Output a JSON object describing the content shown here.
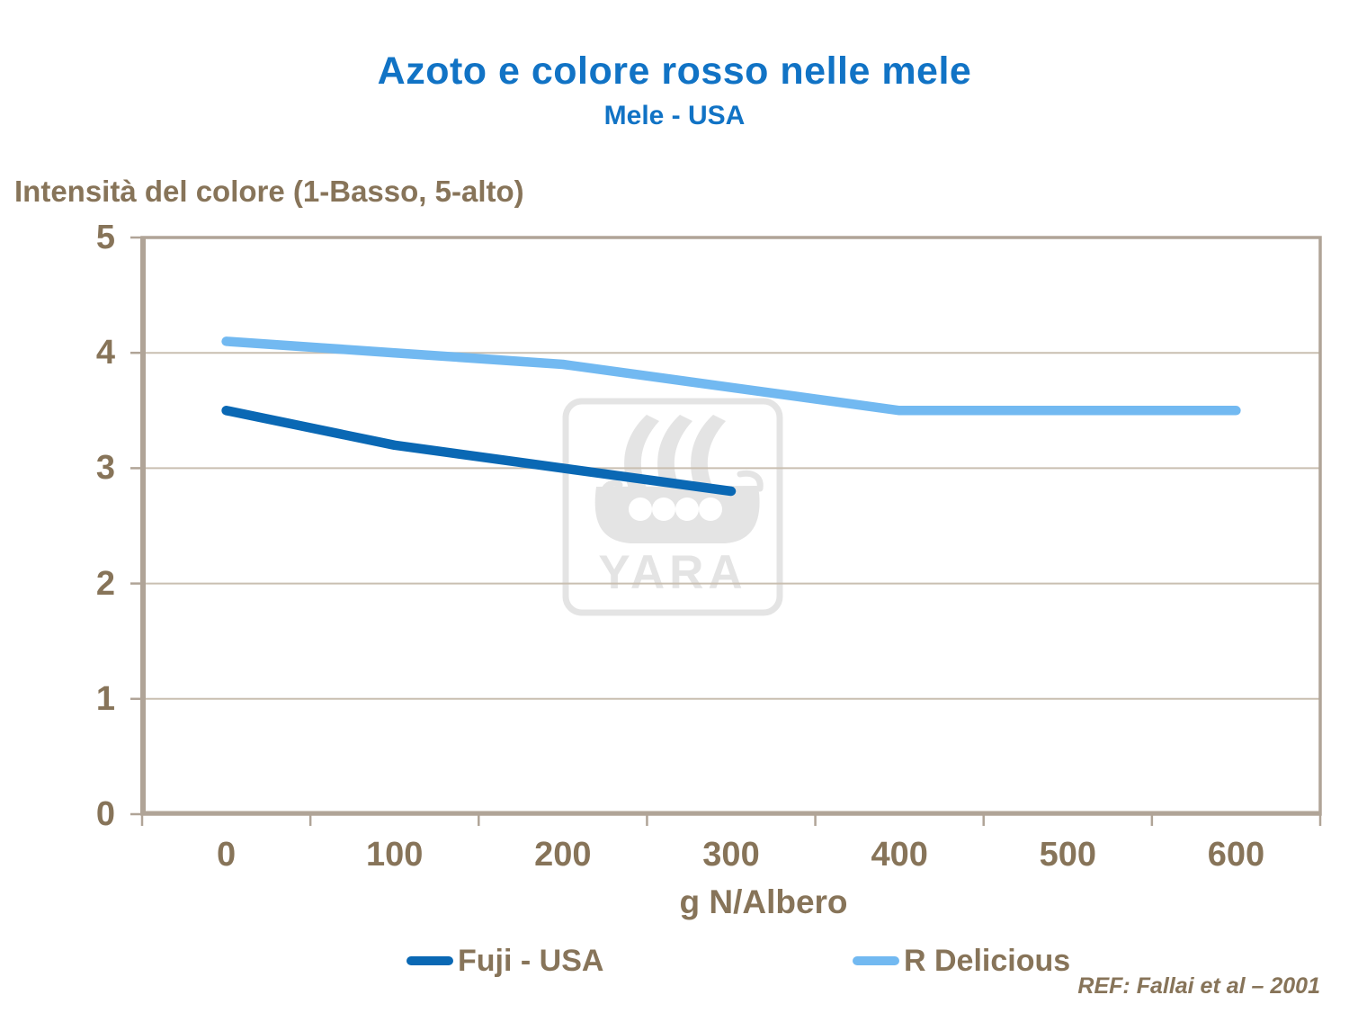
{
  "slide": {
    "title": "Azoto e colore rosso nelle mele",
    "subtitle": "Mele - USA",
    "reference": "REF: Fallai et al – 2001",
    "watermark_text": "YARA"
  },
  "chart_data": {
    "type": "line",
    "title": "Azoto e colore rosso nelle mele",
    "subtitle": "Mele - USA",
    "xlabel": "g N/Albero",
    "ylabel": "Intensità del colore (1-Basso, 5-alto)",
    "x_categories": [
      0,
      100,
      200,
      300,
      400,
      500,
      600
    ],
    "x_tick_labels": [
      "0",
      "100",
      "200",
      "300",
      "400",
      "500",
      "600"
    ],
    "y_tick_labels": [
      "0",
      "1",
      "2",
      "3",
      "4",
      "5"
    ],
    "ylim": [
      0,
      5
    ],
    "grid": "horizontal gridlines at 1,2,3,4",
    "legend_position": "bottom",
    "series": [
      {
        "name": "Fuji - USA",
        "color": "#0a68b4",
        "x": [
          0,
          100,
          200,
          300
        ],
        "values": [
          3.5,
          3.2,
          3.0,
          2.8
        ]
      },
      {
        "name": "R Delicious",
        "color": "#72b9f1",
        "x": [
          0,
          100,
          200,
          300,
          400,
          500,
          600
        ],
        "values": [
          4.1,
          4.0,
          3.9,
          3.7,
          3.5,
          3.5,
          3.5
        ]
      }
    ]
  },
  "colors": {
    "title_blue": "#1173c5",
    "text_brown": "#877459",
    "axis_tan": "#b0a497",
    "gridline_tan": "#c9bfb1",
    "watermark_gray": "#e4e4e4",
    "series_fuji": "#0a68b4",
    "series_r_delicious": "#72b9f1"
  }
}
